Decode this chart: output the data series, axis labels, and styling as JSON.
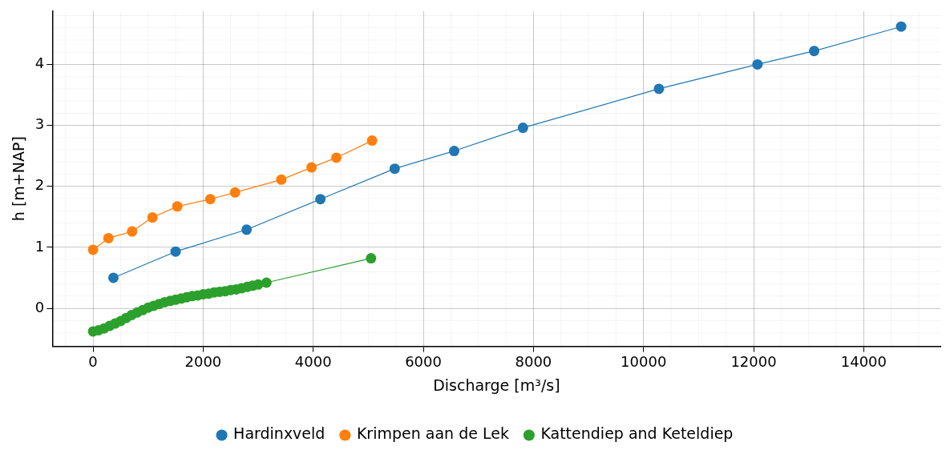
{
  "chart_data": {
    "type": "line",
    "xlabel": "Discharge [m³/s]",
    "ylabel": "h [m+NAP]",
    "xlim": [
      -740,
      15400
    ],
    "ylim": [
      -0.625,
      4.875
    ],
    "xticks": [
      0,
      2000,
      4000,
      6000,
      8000,
      10000,
      12000,
      14000
    ],
    "yticks": [
      0,
      1,
      2,
      3,
      4
    ],
    "grid": true,
    "legend": "bottom",
    "marker": "circle",
    "line_style": "solid",
    "series": [
      {
        "name": "Hardinxveld",
        "color": "#1f77b4",
        "x": [
          370,
          1500,
          2790,
          4130,
          5480,
          6560,
          7810,
          10280,
          12070,
          13100,
          14680
        ],
        "values": [
          0.5,
          0.93,
          1.29,
          1.79,
          2.29,
          2.58,
          2.96,
          3.6,
          4.0,
          4.22,
          4.62
        ]
      },
      {
        "name": "Krimpen aan de Lek",
        "color": "#ff7f0e",
        "x": [
          0,
          280,
          710,
          1080,
          1530,
          2130,
          2580,
          3420,
          3970,
          4420,
          5070
        ],
        "values": [
          0.96,
          1.15,
          1.26,
          1.49,
          1.67,
          1.79,
          1.9,
          2.11,
          2.31,
          2.47,
          2.75
        ]
      },
      {
        "name": "Kattendiep and Keteldiep",
        "color": "#2ca02c",
        "x": [
          0,
          100,
          200,
          300,
          400,
          500,
          600,
          700,
          800,
          900,
          1000,
          1100,
          1200,
          1300,
          1400,
          1500,
          1600,
          1700,
          1800,
          1900,
          2000,
          2100,
          2200,
          2300,
          2400,
          2500,
          2600,
          2700,
          2800,
          2900,
          3000,
          3150,
          5050
        ],
        "values": [
          -0.38,
          -0.36,
          -0.33,
          -0.29,
          -0.25,
          -0.21,
          -0.16,
          -0.11,
          -0.07,
          -0.03,
          0.01,
          0.04,
          0.07,
          0.1,
          0.12,
          0.14,
          0.16,
          0.18,
          0.2,
          0.21,
          0.23,
          0.24,
          0.26,
          0.27,
          0.28,
          0.3,
          0.31,
          0.33,
          0.35,
          0.37,
          0.39,
          0.42,
          0.82
        ]
      }
    ]
  }
}
